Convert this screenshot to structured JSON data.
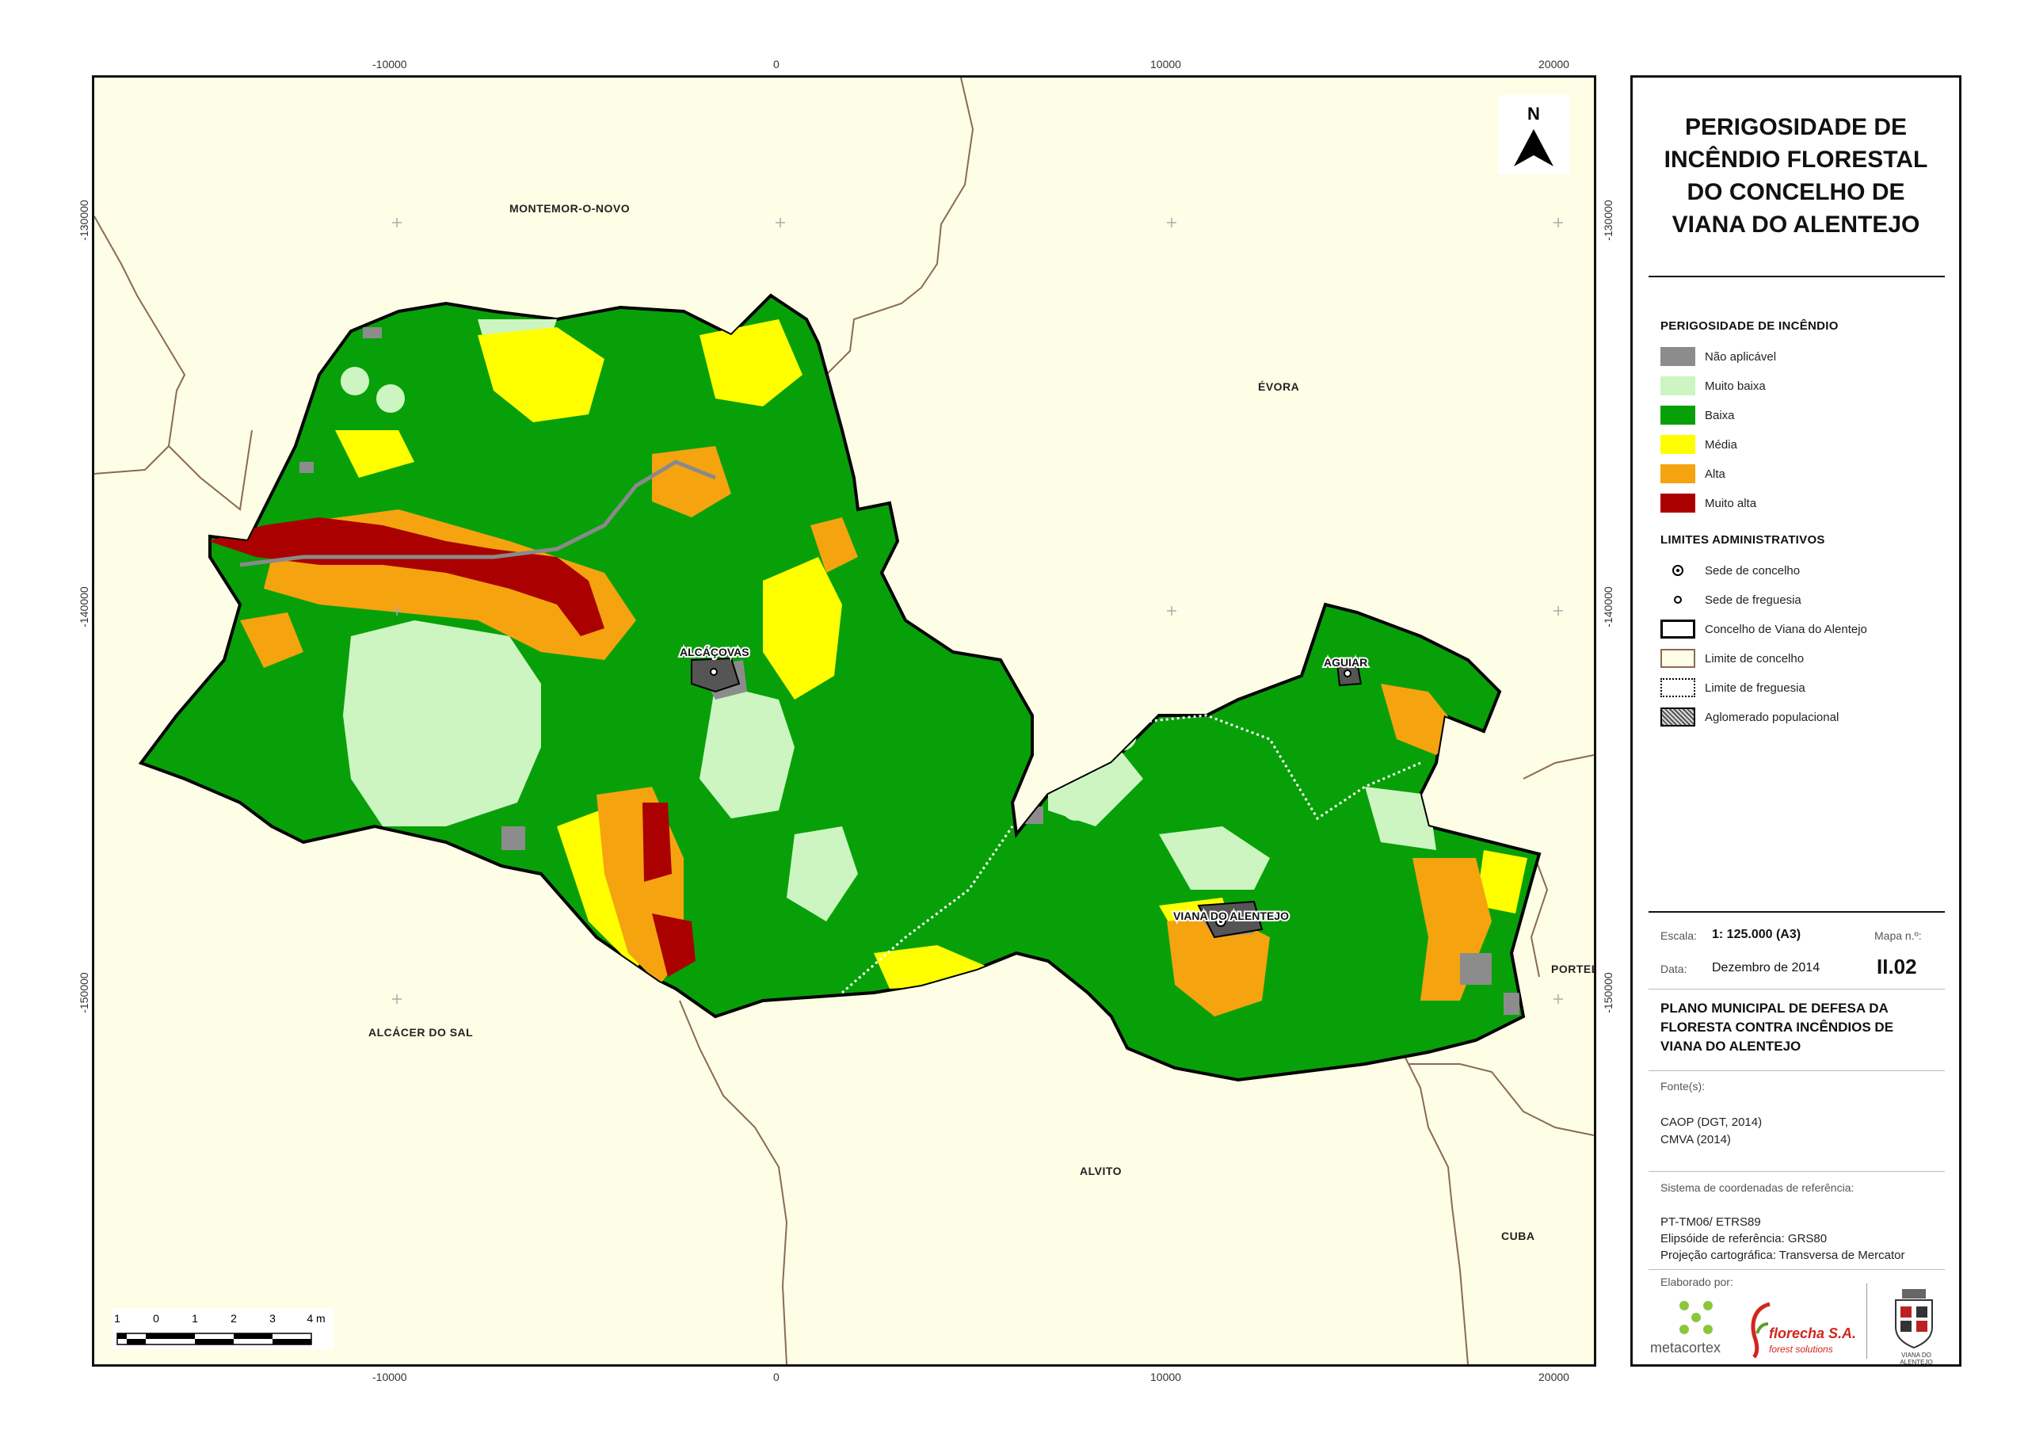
{
  "map": {
    "grid_x_labels": [
      "-10000",
      "0",
      "10000",
      "20000"
    ],
    "grid_y_labels": [
      "-130000",
      "-140000",
      "-150000"
    ],
    "north_label": "N",
    "places": {
      "montemor": "MONTEMOR-O-NOVO",
      "evora": "ÉVORA",
      "alcacer": "ALCÁCER DO SAL",
      "alvito": "ALVITO",
      "portel": "PORTEL",
      "cuba": "CUBA"
    },
    "towns": {
      "alcacovas": "ALCÁÇOVAS",
      "aguiar": "AGUIAR",
      "viana": "VIANA DO ALENTEJO"
    },
    "scalebar_labels": [
      "1",
      "0",
      "1",
      "2",
      "3",
      "4 m"
    ],
    "colors": {
      "background": "#fefee6",
      "nao_aplicavel": "#8c8c8c",
      "muito_baixa": "#ccf5c2",
      "baixa": "#08a008",
      "media": "#ffff00",
      "alta": "#f5a30f",
      "muito_alta": "#aa0000",
      "limite_concelho": "#8b6a55"
    }
  },
  "panel": {
    "title": "PERIGOSIDADE DE\nINCÊNDIO FLORESTAL\nDO CONCELHO DE\nVIANA DO ALENTEJO",
    "legend_hazard_title": "PERIGOSIDADE DE INCÊNDIO",
    "legend_hazard": [
      {
        "label": "Não aplicável",
        "color": "#8c8c8c"
      },
      {
        "label": "Muito baixa",
        "color": "#ccf5c2"
      },
      {
        "label": "Baixa",
        "color": "#08a008"
      },
      {
        "label": "Média",
        "color": "#ffff00"
      },
      {
        "label": "Alta",
        "color": "#f5a30f"
      },
      {
        "label": "Muito alta",
        "color": "#aa0000"
      }
    ],
    "legend_admin_title": "LIMITES ADMINISTRATIVOS",
    "legend_admin": [
      {
        "label": "Sede de concelho",
        "icon": "sede-concelho-icon"
      },
      {
        "label": "Sede de freguesia",
        "icon": "sede-freguesia-icon"
      },
      {
        "label": "Concelho de Viana do Alentejo",
        "icon": "concelho-boundary-icon"
      },
      {
        "label": "Limite de concelho",
        "icon": "limite-concelho-icon"
      },
      {
        "label": "Limite de freguesia",
        "icon": "limite-freguesia-icon"
      },
      {
        "label": "Aglomerado populacional",
        "icon": "aglomerado-icon"
      }
    ],
    "scale_label": "Escala:",
    "scale_value": "1: 125.000 (A3)",
    "date_label": "Data:",
    "date_value": "Dezembro de 2014",
    "map_no_label": "Mapa n.º:",
    "map_no_value": "II.02",
    "plan_title": "PLANO MUNICIPAL DE DEFESA DA\nFLORESTA CONTRA INCÊNDIOS DE\nVIANA DO ALENTEJO",
    "sources_label": "Fonte(s):",
    "sources": [
      "CAOP (DGT, 2014)",
      "CMVA (2014)"
    ],
    "crs_label": "Sistema de coordenadas de referência:",
    "crs": [
      "PT-TM06/ ETRS89",
      "Elipsóide de referência: GRS80",
      "Projeção cartográfica: Transversa de Mercator"
    ],
    "made_by_label": "Elaborado por:",
    "logos": {
      "metacortex": "metacortex",
      "florecha_name": "florecha S.A.",
      "florecha_sub": "forest solutions",
      "municipality": "VIANA DO ALENTEJO"
    }
  }
}
